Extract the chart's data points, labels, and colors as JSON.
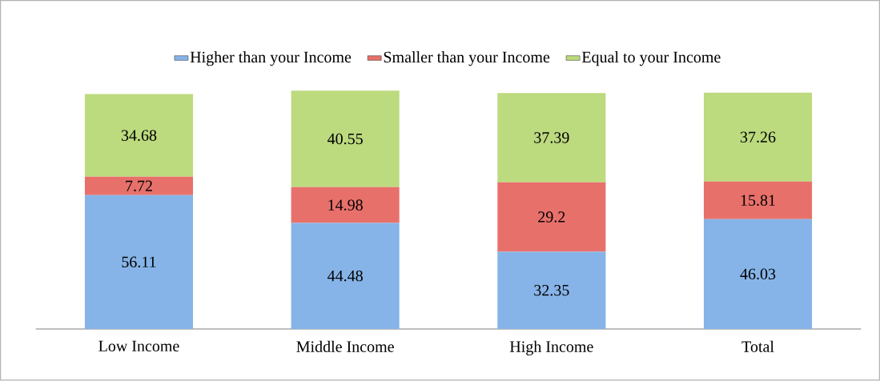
{
  "chart_data": {
    "type": "bar",
    "stacked": true,
    "categories": [
      "Low Income",
      "Middle Income",
      "High Income",
      "Total"
    ],
    "series": [
      {
        "name": "Higher than your Income",
        "color": "#86b4e8",
        "values": [
          56.11,
          44.48,
          32.35,
          46.03
        ]
      },
      {
        "name": "Smaller than your Income",
        "color": "#e8706b",
        "values": [
          7.72,
          14.98,
          29.2,
          15.81
        ]
      },
      {
        "name": "Equal to your Income",
        "color": "#bcda7e",
        "values": [
          34.68,
          40.55,
          37.39,
          37.26
        ]
      }
    ],
    "ylim": [
      0,
      100
    ],
    "tick_labels": "x",
    "data_labels": true,
    "legend": "top"
  }
}
